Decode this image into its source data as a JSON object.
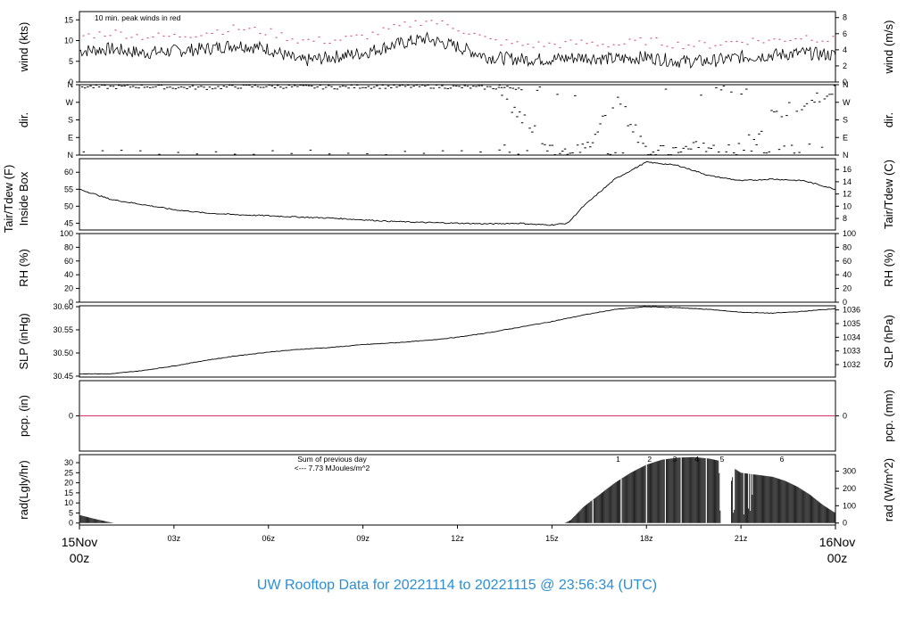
{
  "title": "UW Rooftop Data for 20221114  to  20221115 @ 23:56:34  (UTC)",
  "colors": {
    "peak": "#d6336c",
    "date": "#d6336c",
    "title": "#2a8fd6",
    "annot": "#9b30ff",
    "line": "#000000",
    "zero": "#d6336c"
  },
  "x_axis": {
    "ticks": [
      {
        "hour": 3,
        "label": "03z"
      },
      {
        "hour": 6,
        "label": "06z"
      },
      {
        "hour": 9,
        "label": "09z"
      },
      {
        "hour": 12,
        "label": "12z"
      },
      {
        "hour": 15,
        "label": "15z"
      },
      {
        "hour": 18,
        "label": "18z"
      },
      {
        "hour": 21,
        "label": "21z"
      }
    ],
    "start_label": [
      "15Nov",
      "00z"
    ],
    "end_label": [
      "16Nov",
      "00z"
    ],
    "range_hours": [
      0,
      24
    ]
  },
  "chart_data": [
    {
      "type": "line",
      "id": "wind",
      "ylabel_left": "wind (kts)",
      "ylabel_right": "wind (m/s)",
      "ylim": [
        0,
        17
      ],
      "yticks_left": [
        0,
        5,
        10,
        15
      ],
      "yticks_right": [
        0,
        2,
        4,
        6,
        8
      ],
      "annotation": "10 min. peak winds in red",
      "series": [
        {
          "name": "mean wind",
          "x": [
            0,
            1,
            2,
            3,
            4,
            5,
            6,
            7,
            8,
            9,
            10,
            11,
            12,
            13,
            14,
            15,
            16,
            17,
            18,
            19,
            20,
            21,
            22,
            23,
            24
          ],
          "y": [
            7.5,
            8,
            7,
            7.5,
            8,
            9,
            8,
            5,
            6,
            7,
            9,
            10.5,
            8.5,
            6,
            5.5,
            5.5,
            6,
            5.5,
            6,
            5,
            5,
            6,
            6.5,
            7,
            6.5
          ]
        },
        {
          "name": "peak",
          "x": [
            0,
            1,
            2,
            3,
            4,
            5,
            6,
            7,
            8,
            9,
            10,
            11,
            12,
            13,
            14,
            15,
            16,
            17,
            18,
            19,
            20,
            21,
            22,
            23,
            24
          ],
          "y": [
            11,
            12,
            11,
            11,
            12,
            13,
            12,
            10,
            10,
            11,
            13,
            15,
            13,
            10,
            9,
            9,
            9.5,
            9,
            10,
            9,
            9,
            10,
            10,
            11,
            10
          ]
        }
      ]
    },
    {
      "type": "scatter",
      "id": "dir",
      "ylabel_left": "dir.",
      "ylabel_right": "dir.",
      "ylim": [
        0,
        360
      ],
      "yticks": [
        {
          "v": 0,
          "label": "N"
        },
        {
          "v": 90,
          "label": "E"
        },
        {
          "v": 180,
          "label": "S"
        },
        {
          "v": 270,
          "label": "W"
        },
        {
          "v": 360,
          "label": "N"
        }
      ],
      "series": [
        {
          "name": "north band",
          "x": [
            0,
            1,
            2,
            3,
            4,
            5,
            6,
            7,
            8,
            9,
            10,
            11,
            12,
            13,
            14
          ],
          "y": [
            350,
            348,
            352,
            346,
            345,
            350,
            352,
            349,
            347,
            351,
            350,
            352,
            348,
            345,
            344
          ]
        },
        {
          "name": "scatter",
          "x": [
            13.3,
            13.6,
            14,
            15,
            16,
            17,
            18,
            19,
            20,
            21,
            22,
            23,
            24
          ],
          "y": [
            330,
            250,
            200,
            30,
            10,
            300,
            10,
            20,
            40,
            60,
            200,
            280,
            300
          ]
        }
      ]
    },
    {
      "type": "line",
      "id": "temp",
      "ylabel_left": [
        "Tair/Tdew (F)",
        "Inside Box"
      ],
      "ylabel_right": "Tair/Tdew (C)",
      "ylim": [
        43,
        64
      ],
      "yticks_left": [
        45,
        50,
        55,
        60
      ],
      "yticks_right": [
        8,
        10,
        12,
        14,
        16
      ],
      "series": [
        {
          "name": "tair",
          "x": [
            0,
            1,
            2,
            3,
            4,
            5,
            6,
            7,
            8,
            9,
            10,
            11,
            12,
            13,
            14,
            14.5,
            15,
            15.5,
            16,
            17,
            18,
            19,
            20,
            21,
            22,
            23,
            24
          ],
          "y": [
            55,
            52,
            50.5,
            49,
            48,
            47.5,
            47.2,
            46.8,
            46.5,
            46,
            45.5,
            45.2,
            45,
            44.8,
            45,
            44.6,
            44.5,
            45,
            50,
            58,
            63,
            62,
            59,
            57.5,
            58,
            57.5,
            55
          ]
        }
      ]
    },
    {
      "type": "line",
      "id": "rh",
      "ylabel_left": "RH (%)",
      "ylabel_right": "RH (%)",
      "ylim": [
        0,
        100
      ],
      "yticks_left": [
        0,
        20,
        40,
        60,
        80,
        100
      ],
      "yticks_right": [
        0,
        20,
        40,
        60,
        80,
        100
      ],
      "series": []
    },
    {
      "type": "line",
      "id": "slp",
      "ylabel_left": "SLP (inHg)",
      "ylabel_right": "SLP (hPa)",
      "ylim": [
        30.448,
        30.602
      ],
      "yticks_left": [
        30.45,
        30.5,
        30.55,
        30.6
      ],
      "yticks_left_labels": [
        "30.45",
        "30.50",
        "30.55",
        "30.60"
      ],
      "yticks_right": [
        1032,
        1033,
        1034,
        1035,
        1036
      ],
      "series": [
        {
          "name": "slp",
          "x": [
            0,
            1,
            2,
            3,
            4,
            5,
            6,
            7,
            8,
            9,
            10,
            11,
            12,
            13,
            14,
            15,
            16,
            17,
            18,
            19,
            20,
            21,
            22,
            23,
            24
          ],
          "y": [
            30.455,
            30.455,
            30.462,
            30.472,
            30.484,
            30.494,
            30.502,
            30.508,
            30.512,
            30.518,
            30.522,
            30.527,
            30.534,
            30.544,
            30.556,
            30.568,
            30.582,
            30.594,
            30.6,
            30.598,
            30.594,
            30.588,
            30.586,
            30.59,
            30.596
          ]
        }
      ]
    },
    {
      "type": "line",
      "id": "pcp",
      "ylabel_left": "pcp. (in)",
      "ylabel_right": "pcp. (mm)",
      "ylim": [
        -1,
        1
      ],
      "yticks_left": [
        0
      ],
      "yticks_right": [
        0
      ],
      "series": [
        {
          "name": "pcp",
          "x": [
            0,
            24
          ],
          "y": [
            0,
            0
          ]
        }
      ]
    },
    {
      "type": "area",
      "id": "rad",
      "ylabel_left": "rad(Lgly/hr)",
      "ylabel_right": "rad (W/m^2)",
      "ylim": [
        -1,
        34
      ],
      "yticks_left": [
        0,
        5,
        10,
        15,
        20,
        25,
        30
      ],
      "yticks_right": [
        0,
        100,
        200,
        300
      ],
      "annotation": [
        "Sum of previous day",
        "<--- 7.73 MJoules/m^2"
      ],
      "hour_marks": [
        {
          "x": 17.1,
          "label": "1"
        },
        {
          "x": 18.1,
          "label": "2"
        },
        {
          "x": 18.9,
          "label": "3"
        },
        {
          "x": 19.6,
          "label": "4"
        },
        {
          "x": 20.4,
          "label": "5"
        },
        {
          "x": 22.3,
          "label": "6"
        }
      ],
      "series": [
        {
          "name": "rad",
          "x": [
            0,
            0.5,
            1,
            1.1,
            15.4,
            15.6,
            16,
            16.5,
            17,
            17.5,
            18,
            18.5,
            19,
            19.5,
            20,
            20.3,
            20.35,
            20.8,
            21,
            21.5,
            22,
            22.4,
            22.8,
            23.2,
            23.6,
            24
          ],
          "y": [
            4,
            2,
            0.3,
            0,
            0,
            1.5,
            8,
            14,
            20,
            25,
            29,
            31.5,
            32.5,
            32.8,
            32,
            31,
            0,
            27,
            25,
            24,
            23,
            21,
            18,
            14,
            9,
            5
          ]
        }
      ]
    }
  ]
}
